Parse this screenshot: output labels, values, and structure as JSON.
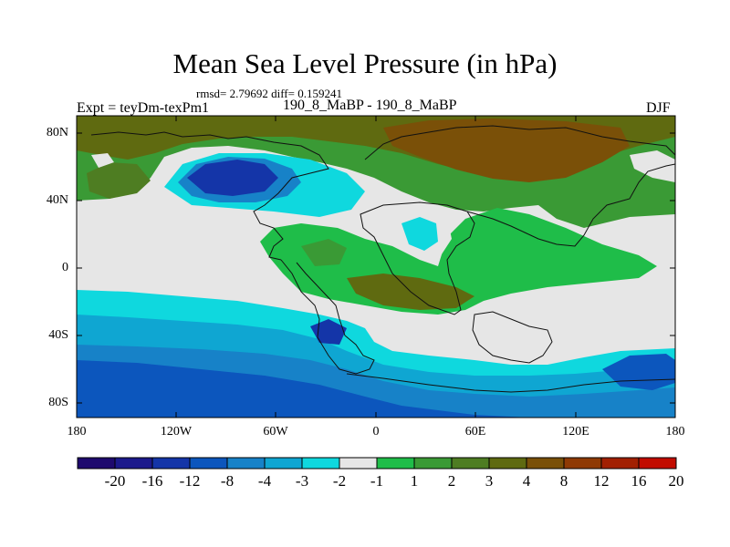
{
  "title": "Mean Sea Level Pressure (in hPa)",
  "stats": "rmsd= 2.79692 diff= 0.159241",
  "left_label": "Expt = teyDm-texPm1",
  "center_label": "190_8_MaBP - 190_8_MaBP",
  "right_label": "DJF",
  "lat_labels": [
    "80N",
    "40N",
    "0",
    "40S",
    "80S"
  ],
  "lon_labels": [
    "180",
    "120W",
    "60W",
    "0",
    "60E",
    "120E",
    "180"
  ],
  "colorbar": {
    "colors": [
      "#1e0a6e",
      "#1c1a8c",
      "#1435a8",
      "#0c56bd",
      "#1782c8",
      "#0fa6d2",
      "#0fd8de",
      "#e6e6e6",
      "#1fbd49",
      "#3a9a35",
      "#4e7d22",
      "#5f6a10",
      "#7a5008",
      "#8f3a04",
      "#a22002",
      "#c20c00"
    ],
    "labels": [
      "-20",
      "-16",
      "-12",
      "-8",
      "-4",
      "-3",
      "-2",
      "-1",
      "1",
      "2",
      "3",
      "4",
      "8",
      "12",
      "16",
      "20"
    ]
  }
}
